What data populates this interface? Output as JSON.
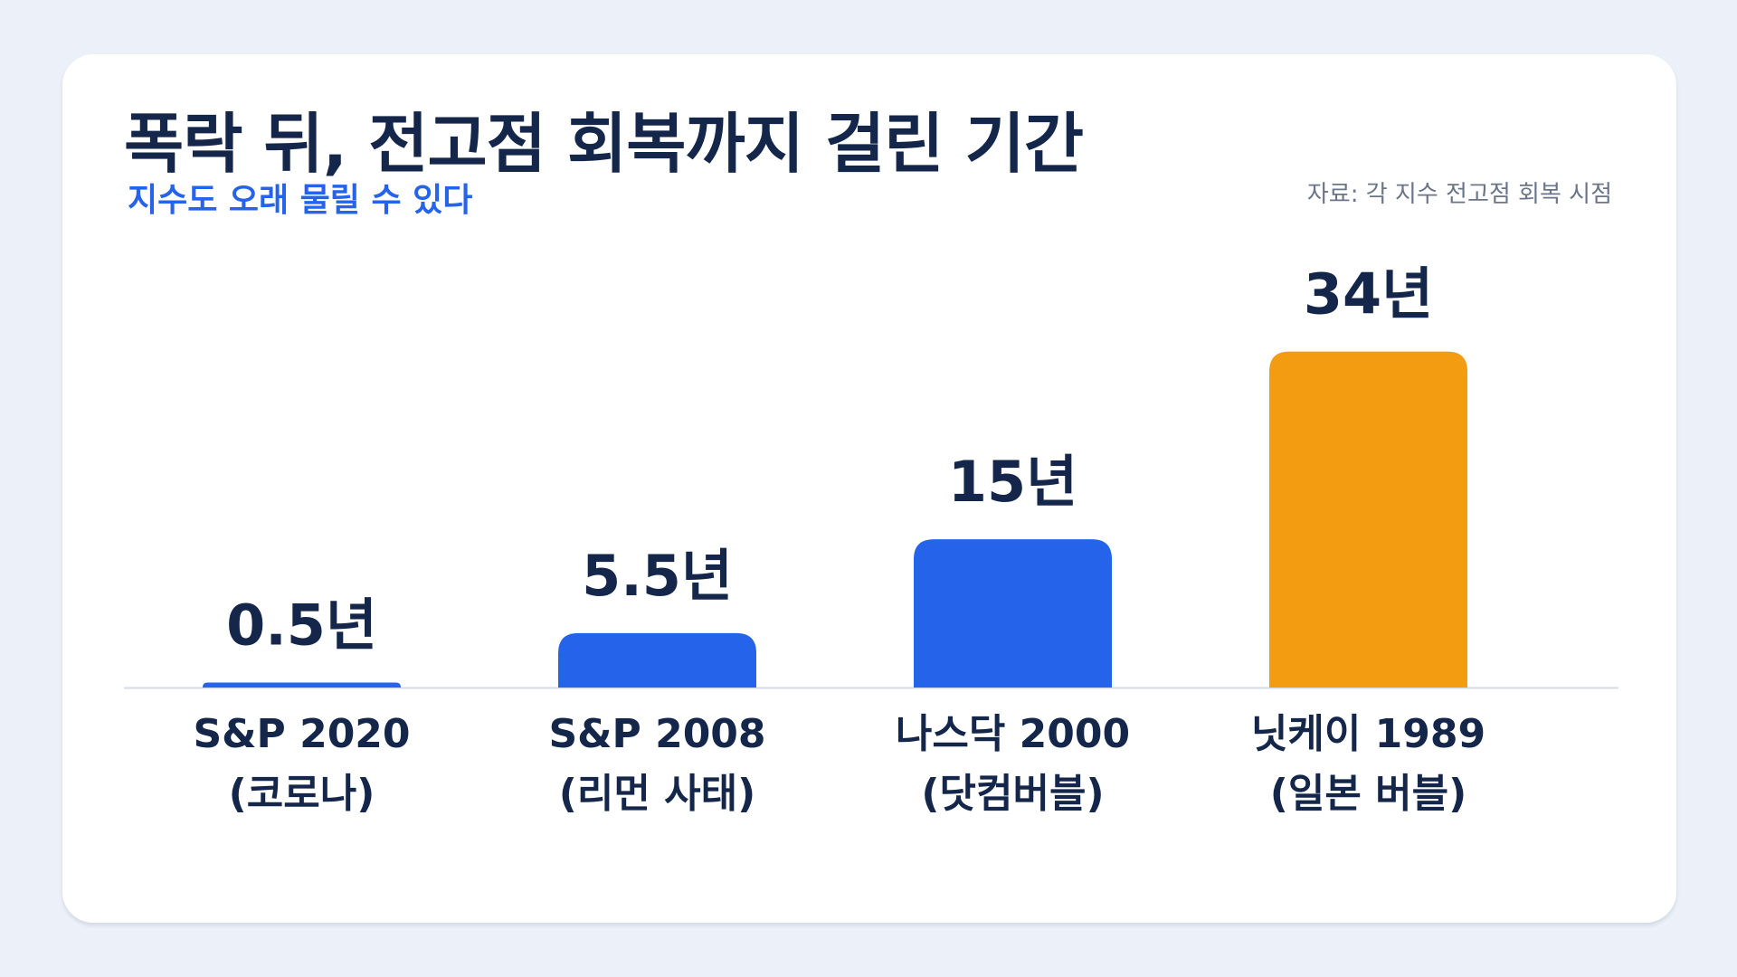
{
  "title": "폭락 뒤, 전고점 회복까지 걸린 기간",
  "subtitle": "지수도 오래 물릴 수 있다",
  "source": "자료: 각 지수 전고점 회복 시점",
  "chart_data": {
    "type": "bar",
    "title": "폭락 뒤, 전고점 회복까지 걸린 기간",
    "subtitle": "지수도 오래 물릴 수 있다",
    "unit": "년",
    "categories": [
      [
        "S&P 2020",
        "(코로나)"
      ],
      [
        "S&P 2008",
        "(리먼 사태)"
      ],
      [
        "나스닥 2000",
        "(닷컴버블)"
      ],
      [
        "닛케이 1989",
        "(일본 버블)"
      ]
    ],
    "values": [
      0.5,
      5.5,
      15,
      34
    ],
    "value_labels": [
      "0.5년",
      "5.5년",
      "15년",
      "34년"
    ],
    "colors": [
      "#2563EB",
      "#2563EB",
      "#2563EB",
      "#F39C12"
    ],
    "ylim": [
      0,
      40
    ],
    "grid": false,
    "legend": "none"
  }
}
